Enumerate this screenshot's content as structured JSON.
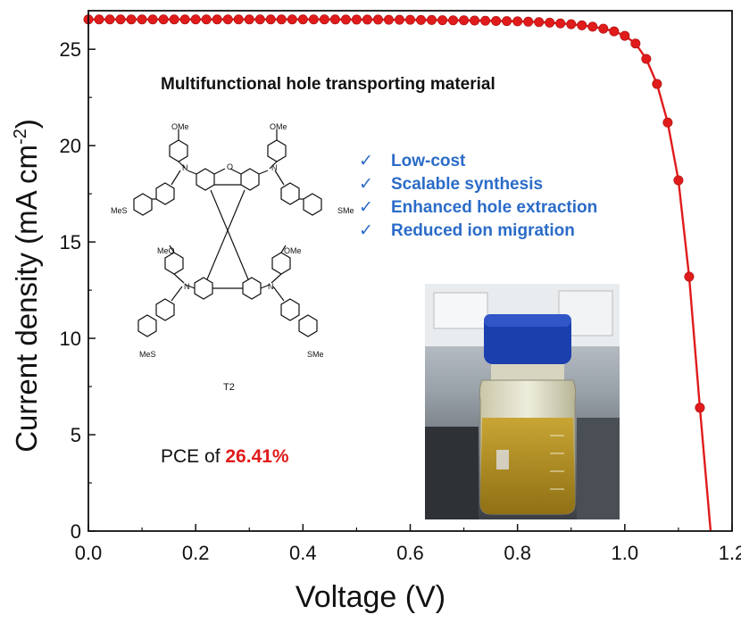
{
  "chart_data": {
    "type": "line",
    "xlabel": "Voltage (V)",
    "ylabel": "Current density (mA cm",
    "ylabel_sup": "-2",
    "ylabel_close": ")",
    "xlim": [
      0.0,
      1.2
    ],
    "ylim": [
      0,
      27
    ],
    "xticks": [
      "0.0",
      "0.2",
      "0.4",
      "0.6",
      "0.8",
      "1.0",
      "1.2"
    ],
    "yticks": [
      "0",
      "5",
      "10",
      "15",
      "20",
      "25"
    ],
    "grid": false,
    "series": [
      {
        "color": "#e01b1b",
        "marker": "circle",
        "x": [
          0.0,
          0.02,
          0.04,
          0.06,
          0.08,
          0.1,
          0.12,
          0.14,
          0.16,
          0.18,
          0.2,
          0.22,
          0.24,
          0.26,
          0.28,
          0.3,
          0.32,
          0.34,
          0.36,
          0.38,
          0.4,
          0.42,
          0.44,
          0.46,
          0.48,
          0.5,
          0.52,
          0.54,
          0.56,
          0.58,
          0.6,
          0.62,
          0.64,
          0.66,
          0.68,
          0.7,
          0.72,
          0.74,
          0.76,
          0.78,
          0.8,
          0.82,
          0.84,
          0.86,
          0.88,
          0.9,
          0.92,
          0.94,
          0.96,
          0.98,
          1.0,
          1.02,
          1.04,
          1.06,
          1.08,
          1.1,
          1.12,
          1.14,
          1.16
        ],
        "y": [
          26.55,
          26.55,
          26.55,
          26.55,
          26.55,
          26.55,
          26.55,
          26.55,
          26.55,
          26.55,
          26.55,
          26.55,
          26.55,
          26.55,
          26.55,
          26.55,
          26.55,
          26.55,
          26.55,
          26.55,
          26.55,
          26.55,
          26.55,
          26.55,
          26.54,
          26.54,
          26.54,
          26.54,
          26.53,
          26.53,
          26.53,
          26.52,
          26.52,
          26.51,
          26.5,
          26.5,
          26.49,
          26.48,
          26.47,
          26.46,
          26.45,
          26.43,
          26.41,
          26.38,
          26.34,
          26.3,
          26.24,
          26.17,
          26.07,
          25.93,
          25.7,
          25.3,
          24.5,
          23.2,
          21.2,
          18.2,
          13.2,
          6.4,
          0.0
        ]
      }
    ]
  },
  "inset": {
    "title": "Multifunctional hole transporting material",
    "features": [
      "Low-cost",
      "Scalable synthesis",
      "Enhanced hole extraction",
      "Reduced ion migration"
    ],
    "check_glyph": "✓",
    "pce_prefix": "PCE of ",
    "pce_value": "26.41%",
    "molecule_label": "T2",
    "substituents": {
      "ome": "OMe",
      "meo": "MeO",
      "sme": "SMe",
      "mes": "MeS",
      "n": "N",
      "o": "O"
    }
  },
  "colors": {
    "curve": "#e01b1b",
    "feature_text": "#2b6cc8",
    "pce_highlight": "#e01b1b",
    "vial_cap": "#1c3fae",
    "powder": "#b9941f"
  }
}
